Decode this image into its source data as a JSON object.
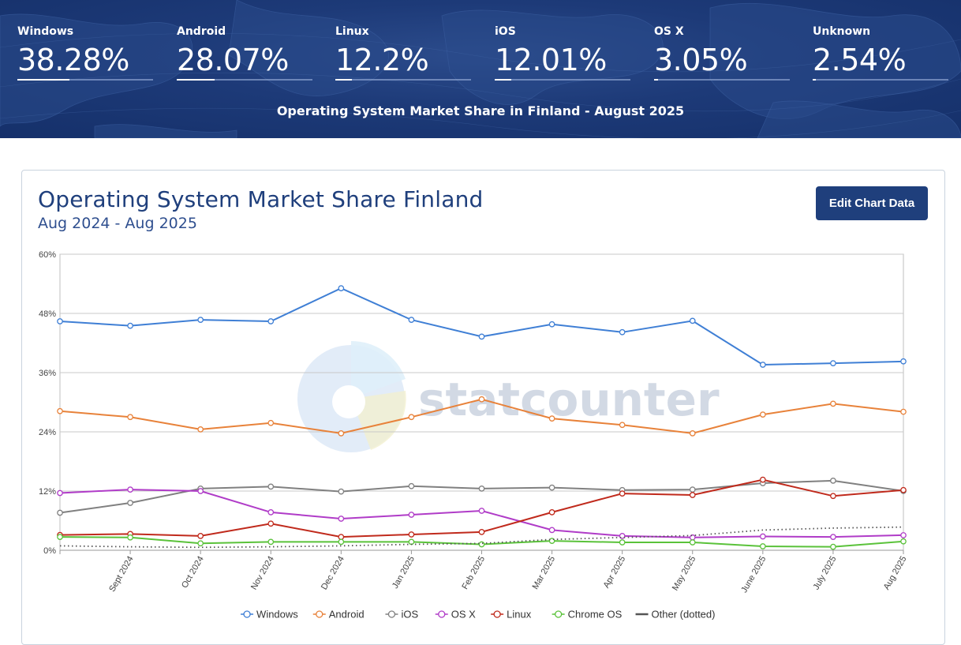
{
  "header": {
    "stats": [
      {
        "label": "Windows",
        "value": "38.28%",
        "share": 38.28
      },
      {
        "label": "Android",
        "value": "28.07%",
        "share": 28.07
      },
      {
        "label": "Linux",
        "value": "12.2%",
        "share": 12.2
      },
      {
        "label": "iOS",
        "value": "12.01%",
        "share": 12.01
      },
      {
        "label": "OS X",
        "value": "3.05%",
        "share": 3.05
      },
      {
        "label": "Unknown",
        "value": "2.54%",
        "share": 2.54
      }
    ],
    "title": "Operating System Market Share in Finland - August 2025"
  },
  "card": {
    "title": "Operating System Market Share Finland",
    "subtitle": "Aug 2024 - Aug 2025",
    "edit_button": "Edit Chart Data"
  },
  "watermark": "statcounter",
  "colors": {
    "banner": "#1d3a78",
    "accent": "#1f3f7c"
  },
  "chart_data": {
    "type": "line",
    "x": [
      "Aug 2024",
      "Sept 2024",
      "Oct 2024",
      "Nov 2024",
      "Dec 2024",
      "Jan 2025",
      "Feb 2025",
      "Mar 2025",
      "Apr 2025",
      "May 2025",
      "June 2025",
      "July 2025",
      "Aug 2025"
    ],
    "x_tick_labels": [
      "",
      "Sept 2024",
      "Oct 2024",
      "Nov 2024",
      "Dec 2024",
      "Jan 2025",
      "Feb 2025",
      "Mar 2025",
      "Apr 2025",
      "May 2025",
      "June 2025",
      "July 2025",
      "Aug 2025"
    ],
    "ylim": [
      0,
      60
    ],
    "y_ticks": [
      0,
      12,
      24,
      36,
      48,
      60
    ],
    "y_tick_labels": [
      "0%",
      "12%",
      "24%",
      "36%",
      "48%",
      "60%"
    ],
    "grid": true,
    "legend_position": "bottom",
    "series": [
      {
        "name": "Windows",
        "color": "#3f7fd5",
        "style": "solid",
        "markers": true,
        "values": [
          46.4,
          45.5,
          46.7,
          46.4,
          53.1,
          46.7,
          43.3,
          45.8,
          44.2,
          46.5,
          37.6,
          37.9,
          38.28
        ]
      },
      {
        "name": "Android",
        "color": "#e8823a",
        "style": "solid",
        "markers": true,
        "values": [
          28.2,
          27.0,
          24.5,
          25.8,
          23.7,
          27.0,
          30.6,
          26.7,
          25.4,
          23.7,
          27.5,
          29.7,
          28.07
        ]
      },
      {
        "name": "iOS",
        "color": "#808080",
        "style": "solid",
        "markers": true,
        "values": [
          7.6,
          9.6,
          12.5,
          12.9,
          11.9,
          13.0,
          12.5,
          12.7,
          12.2,
          12.3,
          13.6,
          14.1,
          12.01
        ]
      },
      {
        "name": "OS X",
        "color": "#b03cc8",
        "style": "solid",
        "markers": true,
        "values": [
          11.6,
          12.3,
          12.0,
          7.7,
          6.4,
          7.2,
          8.0,
          4.1,
          2.9,
          2.6,
          2.8,
          2.7,
          3.05
        ]
      },
      {
        "name": "Linux",
        "color": "#c02a1c",
        "style": "solid",
        "markers": true,
        "values": [
          3.1,
          3.3,
          2.9,
          5.4,
          2.7,
          3.2,
          3.7,
          7.7,
          11.5,
          11.2,
          14.3,
          11.0,
          12.2
        ]
      },
      {
        "name": "Chrome OS",
        "color": "#5ac23a",
        "style": "solid",
        "markers": true,
        "values": [
          2.7,
          2.6,
          1.4,
          1.7,
          1.7,
          1.7,
          1.2,
          1.9,
          1.6,
          1.6,
          0.8,
          0.7,
          1.8
        ]
      },
      {
        "name": "Other (dotted)",
        "color": "#555555",
        "style": "dotted",
        "markers": false,
        "values": [
          0.9,
          0.7,
          0.6,
          0.7,
          0.9,
          1.2,
          1.4,
          2.2,
          2.6,
          3.0,
          4.1,
          4.5,
          4.7
        ]
      }
    ]
  }
}
